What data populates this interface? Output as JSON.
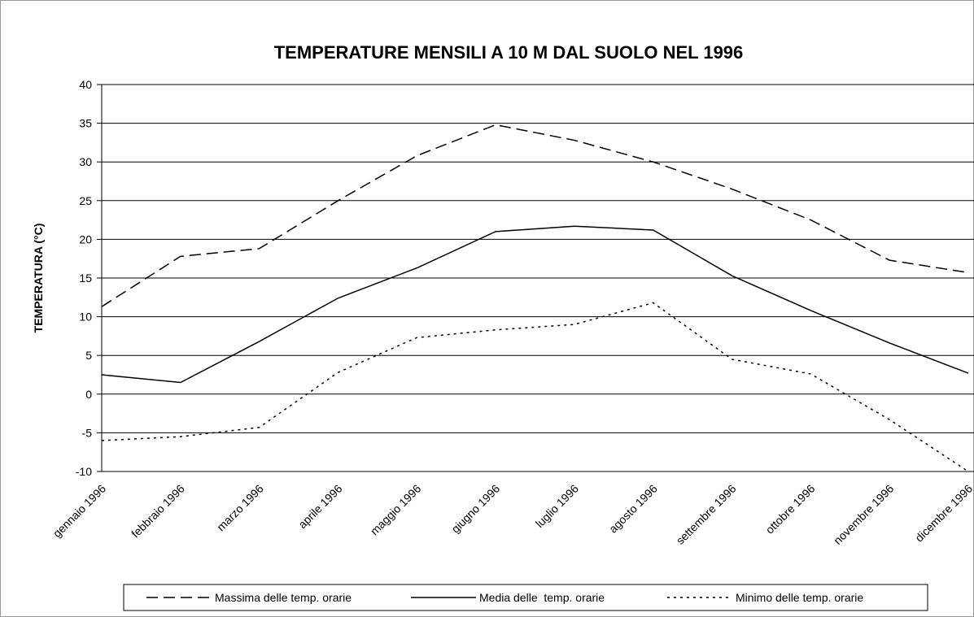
{
  "chart_data": {
    "type": "line",
    "title": "TEMPERATURE MENSILI A 10 M DAL SUOLO NEL 1996",
    "y_label": "TEMPERATURA (°C)",
    "categories": [
      "gennaio 1996",
      "febbraio 1996",
      "marzo 1996",
      "aprile 1996",
      "maggio 1996",
      "giugno 1996",
      "luglio 1996",
      "agosto 1996",
      "settembre 1996",
      "ottobre 1996",
      "novembre 1996",
      "dicembre 1996"
    ],
    "series": [
      {
        "name": "Massima delle temp. orarie",
        "color": "#000000",
        "style": "dashed",
        "values": [
          11.3,
          17.8,
          18.8,
          25,
          30.8,
          34.8,
          32.8,
          30,
          26.5,
          22.5,
          17.3,
          15.7
        ]
      },
      {
        "name": "Media delle  temp. orarie",
        "color": "#000000",
        "style": "solid",
        "values": [
          2.5,
          1.5,
          6.8,
          12.4,
          16.3,
          21,
          21.7,
          21.2,
          15.3,
          10.8,
          6.6,
          2.7
        ]
      },
      {
        "name": "Minimo delle temp. orarie",
        "color": "#000000",
        "style": "dotted",
        "values": [
          -6,
          -5.5,
          -4.3,
          2.8,
          7.3,
          8.3,
          9,
          11.8,
          4.5,
          2.6,
          -3.3,
          -10
        ]
      }
    ],
    "ylim": [
      -10,
      40
    ],
    "yticks": [
      -10,
      -5,
      0,
      5,
      10,
      15,
      20,
      25,
      30,
      35,
      40
    ],
    "grid": true,
    "legend": "bottom"
  }
}
